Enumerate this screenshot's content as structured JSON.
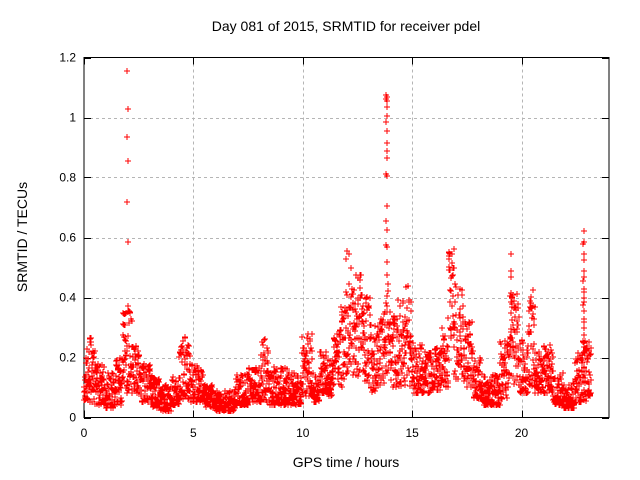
{
  "chart_data": {
    "type": "scatter",
    "title": "Day 081 of 2015, SRMTID for receiver pdel",
    "xlabel": "GPS time / hours",
    "ylabel": "SRMTID / TECUs",
    "xlim": [
      0,
      24
    ],
    "ylim": [
      0,
      1.2
    ],
    "xticks": {
      "values": [
        0,
        5,
        10,
        15,
        20
      ],
      "labels": [
        "0",
        "5",
        "10",
        "15",
        "20"
      ]
    },
    "yticks": {
      "values": [
        0,
        0.2,
        0.4,
        0.6,
        0.8,
        1.0,
        1.2
      ],
      "labels": [
        "0",
        "0.2",
        "0.4",
        "0.6",
        "0.8",
        "1",
        "1.2"
      ]
    },
    "grid": true,
    "legend": "none",
    "marker": {
      "shape": "plus",
      "color": "#ff0000",
      "size": 7
    },
    "colors": {
      "background": "#ffffff",
      "frame": "#000000",
      "grid": "#b5b5b5",
      "text": "#000000"
    },
    "series": [
      {
        "name": "SRMTID",
        "note": "dense 30s-cadence scatter; density_segments = [t_start_h, t_end_h, min_TECU, max_TECU, n_points, low_bias_exponent]",
        "density_segments": [
          [
            0.0,
            0.2,
            0.05,
            0.23,
            26,
            1.3
          ],
          [
            0.2,
            0.5,
            0.05,
            0.28,
            38,
            1.2
          ],
          [
            0.5,
            0.9,
            0.04,
            0.18,
            48,
            1.4
          ],
          [
            0.9,
            1.4,
            0.03,
            0.15,
            60,
            1.4
          ],
          [
            1.4,
            1.75,
            0.04,
            0.2,
            42,
            1.3
          ],
          [
            1.75,
            2.2,
            0.08,
            0.4,
            56,
            1.1
          ],
          [
            2.2,
            2.55,
            0.08,
            0.24,
            42,
            1.3
          ],
          [
            2.55,
            3.05,
            0.05,
            0.18,
            60,
            1.4
          ],
          [
            3.05,
            3.5,
            0.03,
            0.14,
            54,
            1.4
          ],
          [
            3.5,
            4.0,
            0.02,
            0.11,
            60,
            1.4
          ],
          [
            4.0,
            4.35,
            0.04,
            0.14,
            42,
            1.4
          ],
          [
            4.35,
            4.85,
            0.06,
            0.27,
            60,
            1.3
          ],
          [
            4.85,
            5.45,
            0.05,
            0.18,
            72,
            1.5
          ],
          [
            5.45,
            6.0,
            0.03,
            0.11,
            66,
            1.5
          ],
          [
            6.0,
            6.9,
            0.02,
            0.09,
            108,
            1.5
          ],
          [
            6.9,
            7.5,
            0.04,
            0.15,
            72,
            1.5
          ],
          [
            7.5,
            8.1,
            0.05,
            0.17,
            72,
            1.5
          ],
          [
            8.1,
            8.45,
            0.05,
            0.27,
            42,
            1.3
          ],
          [
            8.45,
            9.3,
            0.04,
            0.17,
            102,
            1.5
          ],
          [
            9.3,
            9.95,
            0.04,
            0.15,
            78,
            1.5
          ],
          [
            9.95,
            10.45,
            0.07,
            0.28,
            60,
            1.3
          ],
          [
            10.45,
            10.8,
            0.05,
            0.14,
            42,
            1.4
          ],
          [
            10.8,
            11.1,
            0.08,
            0.22,
            36,
            1.3
          ],
          [
            11.1,
            11.4,
            0.07,
            0.2,
            36,
            1.3
          ],
          [
            11.4,
            11.65,
            0.1,
            0.28,
            30,
            1.2
          ],
          [
            11.65,
            11.95,
            0.1,
            0.4,
            36,
            1.2
          ],
          [
            11.95,
            12.3,
            0.14,
            0.56,
            44,
            1.2
          ],
          [
            12.3,
            12.7,
            0.12,
            0.48,
            50,
            1.2
          ],
          [
            12.7,
            13.1,
            0.1,
            0.42,
            48,
            1.2
          ],
          [
            13.1,
            13.5,
            0.08,
            0.32,
            48,
            1.3
          ],
          [
            13.5,
            13.75,
            0.1,
            0.35,
            30,
            1.2
          ],
          [
            13.75,
            14.0,
            0.14,
            0.46,
            32,
            1.0
          ],
          [
            14.0,
            14.3,
            0.1,
            0.34,
            36,
            1.3
          ],
          [
            14.3,
            14.7,
            0.1,
            0.4,
            48,
            1.2
          ],
          [
            14.7,
            15.0,
            0.1,
            0.44,
            36,
            1.2
          ],
          [
            15.0,
            15.45,
            0.08,
            0.25,
            54,
            1.4
          ],
          [
            15.45,
            15.9,
            0.08,
            0.22,
            54,
            1.4
          ],
          [
            15.9,
            16.35,
            0.09,
            0.24,
            54,
            1.4
          ],
          [
            16.35,
            16.65,
            0.1,
            0.3,
            36,
            1.3
          ],
          [
            16.65,
            16.9,
            0.18,
            0.575,
            32,
            1.0
          ],
          [
            16.9,
            17.35,
            0.12,
            0.45,
            54,
            1.2
          ],
          [
            17.35,
            17.8,
            0.1,
            0.32,
            54,
            1.3
          ],
          [
            17.8,
            18.2,
            0.06,
            0.2,
            48,
            1.4
          ],
          [
            18.2,
            18.7,
            0.04,
            0.14,
            60,
            1.5
          ],
          [
            18.7,
            19.0,
            0.04,
            0.15,
            36,
            1.5
          ],
          [
            19.0,
            19.45,
            0.06,
            0.26,
            54,
            1.3
          ],
          [
            19.45,
            19.62,
            0.15,
            0.42,
            22,
            1.0
          ],
          [
            19.62,
            19.9,
            0.1,
            0.42,
            34,
            1.2
          ],
          [
            19.9,
            20.3,
            0.08,
            0.26,
            48,
            1.4
          ],
          [
            20.3,
            20.6,
            0.1,
            0.43,
            36,
            1.1
          ],
          [
            20.6,
            21.0,
            0.08,
            0.22,
            48,
            1.4
          ],
          [
            21.0,
            21.45,
            0.08,
            0.25,
            54,
            1.4
          ],
          [
            21.45,
            21.9,
            0.04,
            0.15,
            54,
            1.5
          ],
          [
            21.9,
            22.45,
            0.03,
            0.12,
            66,
            1.5
          ],
          [
            22.45,
            22.75,
            0.05,
            0.22,
            36,
            1.3
          ],
          [
            22.75,
            22.95,
            0.05,
            0.26,
            28,
            1.1
          ],
          [
            22.95,
            23.2,
            0.07,
            0.26,
            30,
            1.3
          ]
        ],
        "outlier_points": [
          [
            1.98,
            1.155
          ],
          [
            1.99,
            1.03
          ],
          [
            1.98,
            0.935
          ],
          [
            1.99,
            0.855
          ],
          [
            1.98,
            0.72
          ],
          [
            1.99,
            0.585
          ],
          [
            13.8,
            1.075
          ],
          [
            13.86,
            1.07
          ],
          [
            13.82,
            1.06
          ],
          [
            13.87,
            1.055
          ],
          [
            13.84,
            1.035
          ],
          [
            13.84,
            1.005
          ],
          [
            13.81,
            0.985
          ],
          [
            13.83,
            0.955
          ],
          [
            13.84,
            0.915
          ],
          [
            13.86,
            0.89
          ],
          [
            13.84,
            0.865
          ],
          [
            13.81,
            0.81
          ],
          [
            13.86,
            0.805
          ],
          [
            13.84,
            0.705
          ],
          [
            13.82,
            0.655
          ],
          [
            13.85,
            0.625
          ],
          [
            13.82,
            0.575
          ],
          [
            13.87,
            0.57
          ],
          [
            13.84,
            0.52
          ],
          [
            13.83,
            0.475
          ],
          [
            19.52,
            0.545
          ],
          [
            19.51,
            0.49
          ],
          [
            19.53,
            0.47
          ],
          [
            22.84,
            0.62
          ],
          [
            22.85,
            0.585
          ],
          [
            22.83,
            0.58
          ],
          [
            22.85,
            0.545
          ],
          [
            22.84,
            0.525
          ],
          [
            22.86,
            0.49
          ],
          [
            22.85,
            0.47
          ],
          [
            22.83,
            0.455
          ],
          [
            22.85,
            0.43
          ],
          [
            22.86,
            0.42
          ],
          [
            22.84,
            0.4
          ],
          [
            22.85,
            0.385
          ],
          [
            22.83,
            0.375
          ],
          [
            22.85,
            0.355
          ],
          [
            22.84,
            0.33
          ],
          [
            22.86,
            0.32
          ],
          [
            22.85,
            0.3
          ],
          [
            22.84,
            0.275
          ],
          [
            22.85,
            0.25
          ],
          [
            22.86,
            0.235
          ]
        ]
      }
    ]
  }
}
